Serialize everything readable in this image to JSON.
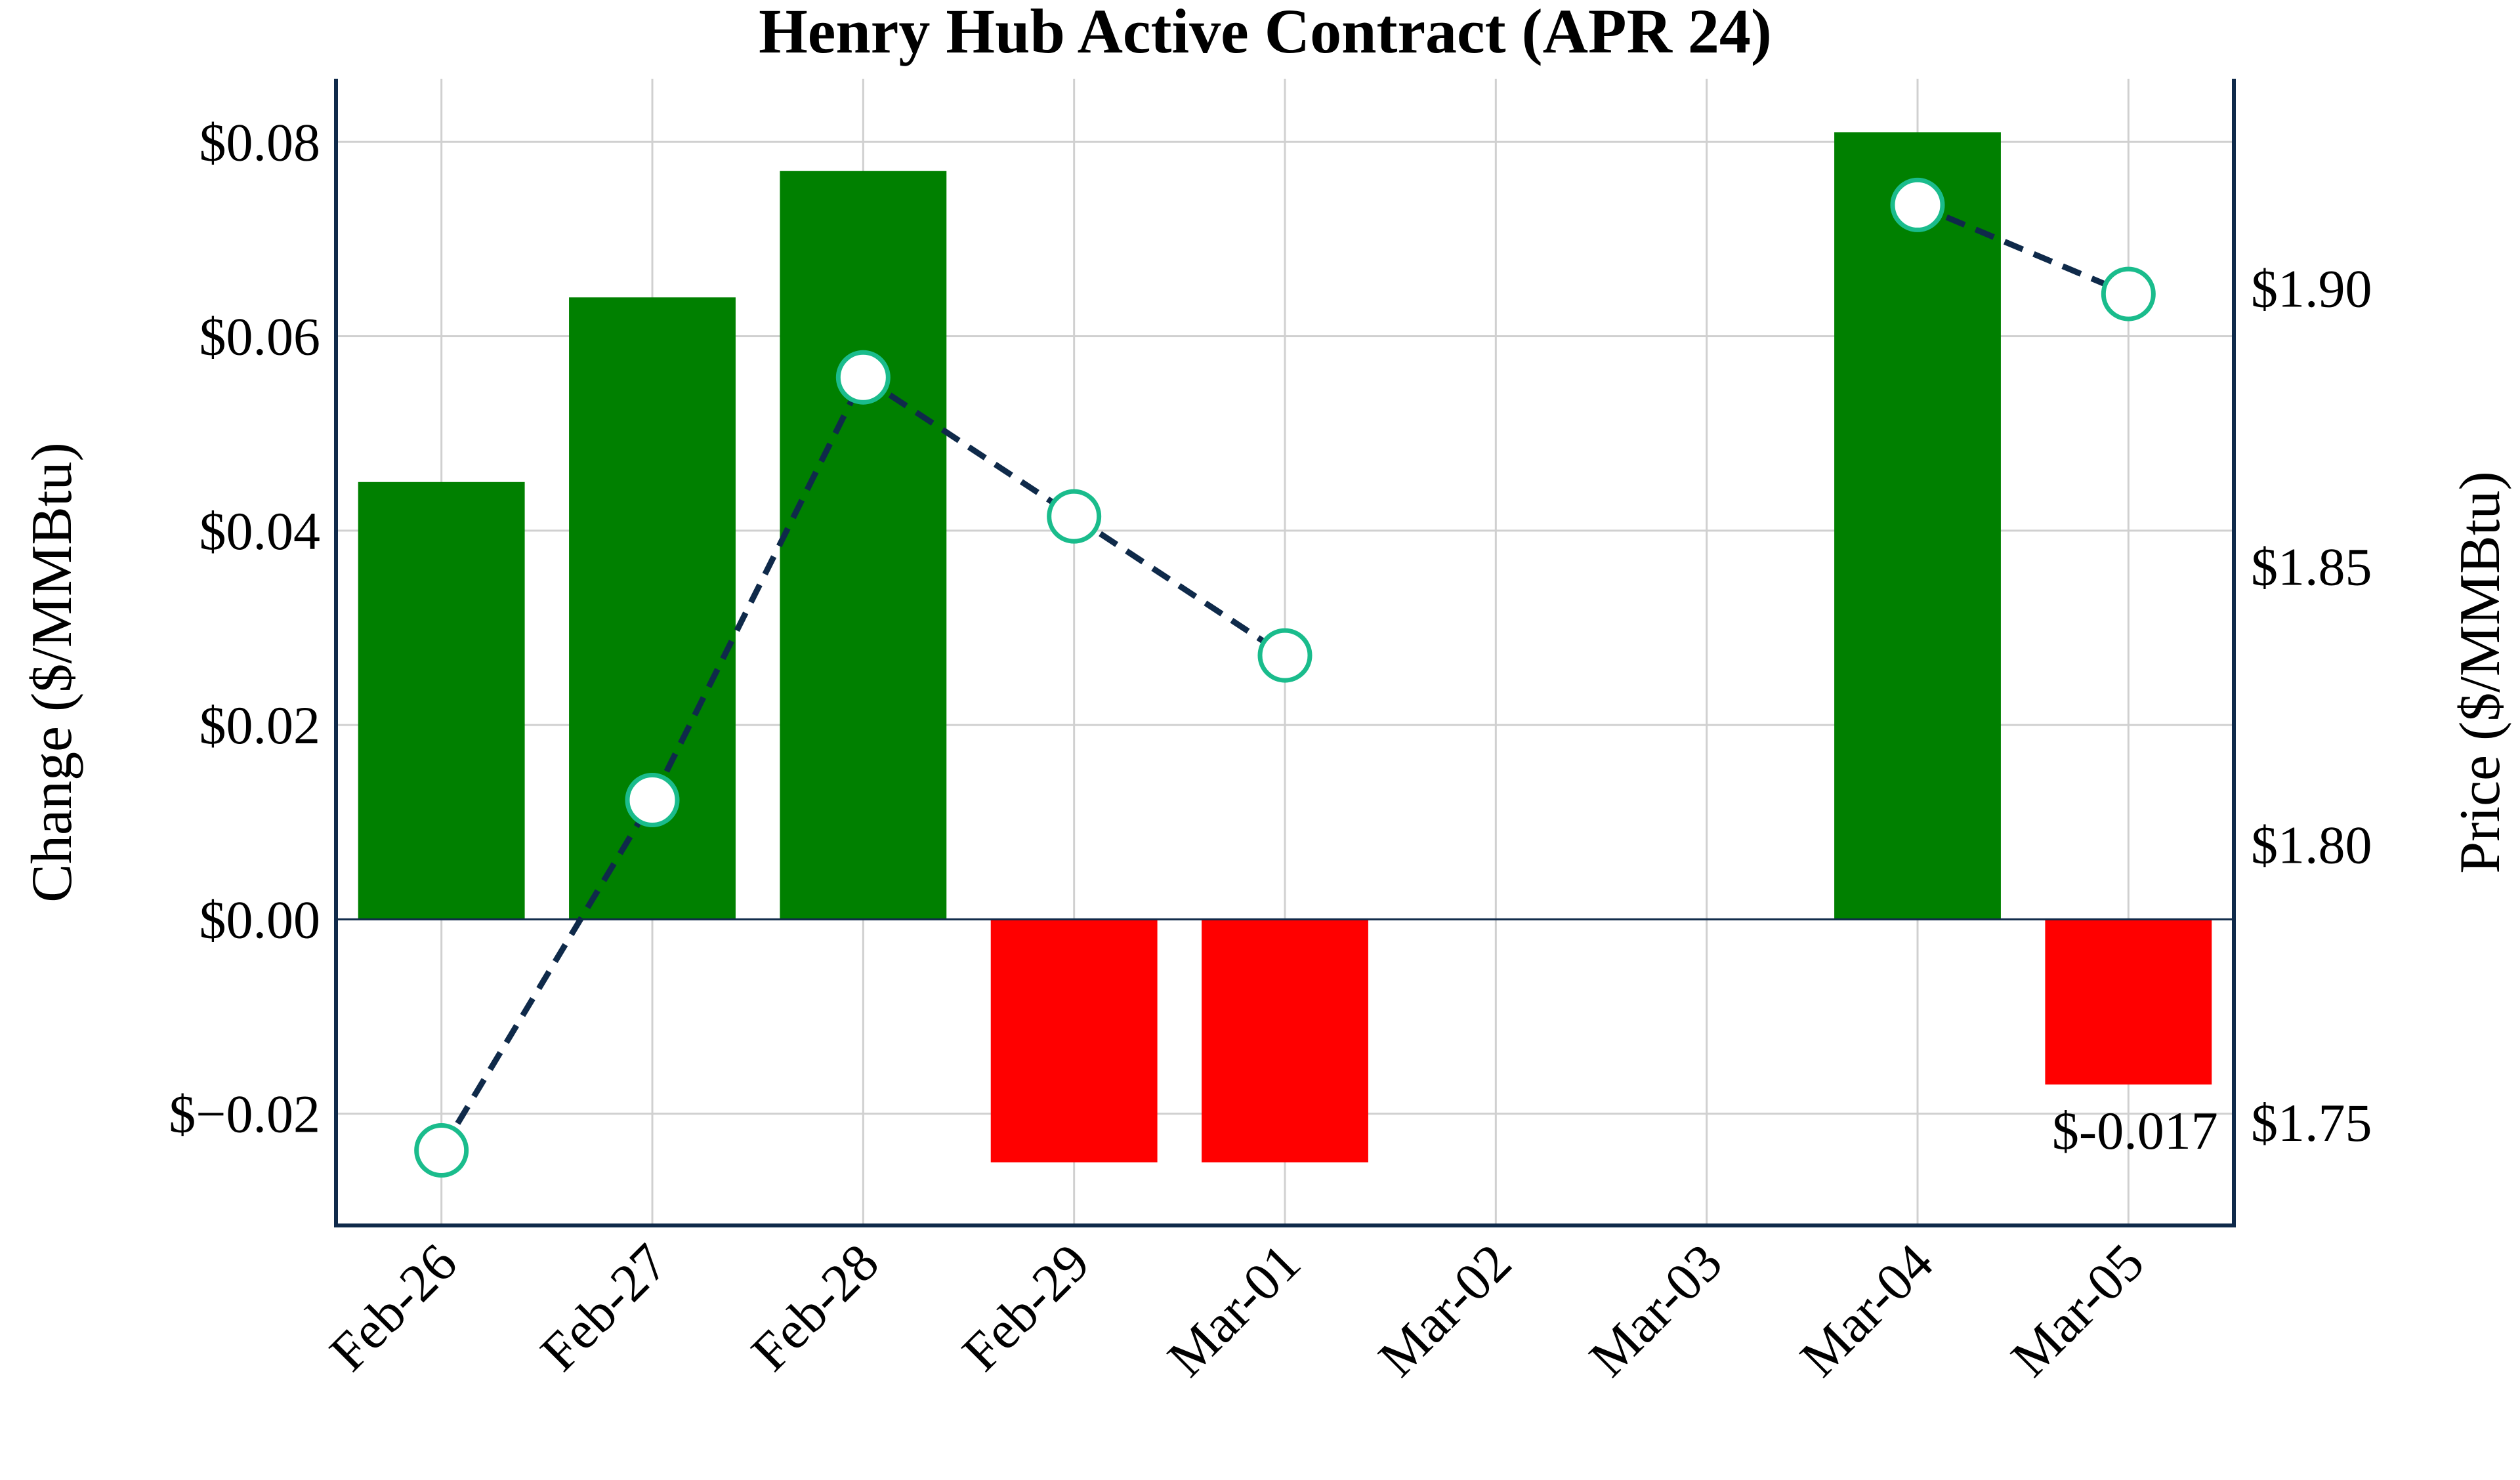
{
  "chart_data": {
    "type": "bar+line",
    "title": "Henry Hub Active Contract (APR 24)",
    "categories": [
      "Feb-26",
      "Feb-27",
      "Feb-28",
      "Feb-29",
      "Mar-01",
      "Mar-02",
      "Mar-03",
      "Mar-04",
      "Mar-05"
    ],
    "series": [
      {
        "axis": "left",
        "type": "bar",
        "values": [
          0.045,
          0.064,
          0.077,
          -0.025,
          -0.025,
          null,
          null,
          0.081,
          -0.017
        ],
        "positive_color": "#008000",
        "negative_color": "#ff0000"
      },
      {
        "axis": "right",
        "type": "line",
        "style": "dashed",
        "marker": "circle",
        "line_color": "#0f2a4a",
        "marker_edge_color": "#1abc8c",
        "marker_face_color": "#ffffff",
        "values": [
          1.745,
          1.808,
          1.884,
          1.859,
          1.834,
          null,
          null,
          1.915,
          1.899
        ]
      }
    ],
    "ylabel_left": "Change ($/MMBtu)",
    "ylabel_right": "Price ($/MMBtu)",
    "ylim_left": [
      -0.0315,
      0.0865
    ],
    "ylim_right": [
      1.7315,
      1.9377
    ],
    "yticks_left": [
      {
        "value": -0.02,
        "label": "$−0.02"
      },
      {
        "value": 0.0,
        "label": "$0.00"
      },
      {
        "value": 0.02,
        "label": "$0.02"
      },
      {
        "value": 0.04,
        "label": "$0.04"
      },
      {
        "value": 0.06,
        "label": "$0.06"
      },
      {
        "value": 0.08,
        "label": "$0.08"
      }
    ],
    "yticks_right": [
      {
        "value": 1.75,
        "label": "$1.75"
      },
      {
        "value": 1.8,
        "label": "$1.80"
      },
      {
        "value": 1.85,
        "label": "$1.85"
      },
      {
        "value": 1.9,
        "label": "$1.90"
      }
    ],
    "annotations": [
      {
        "category": "Mar-05",
        "value": -0.017,
        "text": "$-0.017"
      }
    ],
    "grid": true,
    "zero_line_color": "#0f2a4a"
  }
}
